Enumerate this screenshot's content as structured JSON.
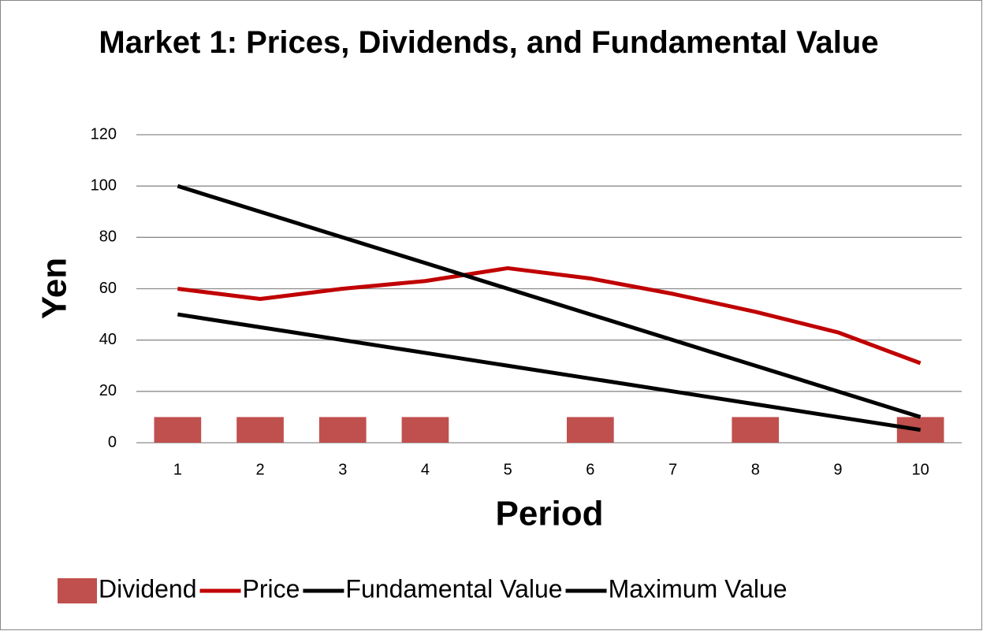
{
  "chart_data": {
    "type": "bar_line",
    "title": "Market 1: Prices, Dividends, and Fundamental Value",
    "x_label": "Period",
    "y_label": "Yen",
    "categories": [
      "1",
      "2",
      "3",
      "4",
      "5",
      "6",
      "7",
      "8",
      "9",
      "10"
    ],
    "series": [
      {
        "name": "Dividend",
        "type": "bar",
        "color": "#c0504d",
        "values": [
          10,
          10,
          10,
          10,
          0,
          10,
          0,
          10,
          0,
          10
        ]
      },
      {
        "name": "Price",
        "type": "line",
        "color": "#c00000",
        "values": [
          60,
          56,
          60,
          63,
          68,
          64,
          58,
          51,
          43,
          31
        ]
      },
      {
        "name": "Fundamental Value",
        "type": "line",
        "color": "#000000",
        "values": [
          50,
          45,
          40,
          35,
          30,
          25,
          20,
          15,
          10,
          5
        ]
      },
      {
        "name": "Maximum Value",
        "type": "line",
        "color": "#000000",
        "values": [
          100,
          90,
          80,
          70,
          60,
          50,
          40,
          30,
          20,
          10
        ]
      }
    ],
    "ylim": [
      0,
      120
    ],
    "yticks": [
      0,
      20,
      40,
      60,
      80,
      100,
      120
    ],
    "grid": true,
    "legend": "bottom"
  }
}
